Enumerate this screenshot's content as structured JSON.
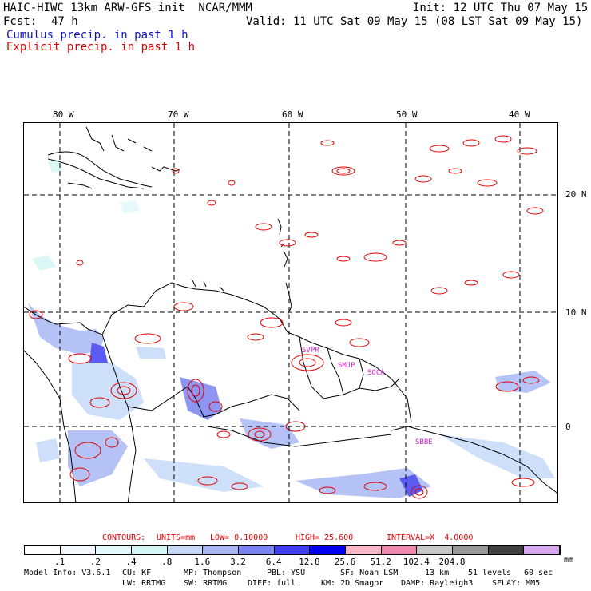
{
  "header": {
    "title": "HAIC-HIWC 13km ARW-GFS init  NCAR/MMM",
    "init": "Init: 12 UTC Thu 07 May 15",
    "fcst_label": "Fcst:",
    "fcst_value": "47 h",
    "valid": "Valid: 11 UTC Sat 09 May 15 (08 LST Sat 09 May 15)",
    "cumulus": "Cumulus precip. in past 1 h",
    "explicit": "Explicit precip. in past 1 h"
  },
  "colors": {
    "cumulus_text": "#1010c0",
    "explicit_text": "#e00000",
    "contour": "#e00000",
    "station": "#d020d0"
  },
  "map": {
    "lon_labels": [
      "80 W",
      "70 W",
      "60 W",
      "50 W",
      "40 W"
    ],
    "lat_labels": [
      "20 N",
      "10 N",
      "0"
    ],
    "stations": [
      "SVPR",
      "SMJP",
      "SOCA",
      "SBBE"
    ]
  },
  "contours_line": {
    "label": "CONTOURS:",
    "units": "UNITS=mm",
    "low": "LOW= 0.10000",
    "high": "HIGH= 25.600",
    "interval": "INTERVAL=X  4.0000"
  },
  "colorbar": {
    "labels": [
      ".1",
      ".2",
      ".4",
      ".8",
      "1.6",
      "3.2",
      "6.4",
      "12.8",
      "25.6",
      "51.2",
      "102.4",
      "204.8"
    ],
    "unit": "mm",
    "colors": [
      "#ffffff",
      "#f4f8ff",
      "#e2fafb",
      "#d4f6f4",
      "#c6daf8",
      "#a9b8f4",
      "#7a84f0",
      "#4040f0",
      "#0000f0",
      "#f8b8c8",
      "#f088b0",
      "#c8c8c8",
      "#989898",
      "#404040",
      "#d8a8f0"
    ]
  },
  "model_info": {
    "line1": [
      "Model Info: V3.6.1",
      "CU: KF",
      "MP: Thompson",
      "PBL: YSU",
      "SF: Noah LSM",
      "13 km",
      "51 levels",
      "60 sec"
    ],
    "line2": [
      "LW: RRTMG",
      "SW: RRTMG",
      "DIFF: full",
      "KM: 2D Smagor",
      "DAMP: Rayleigh3",
      "SFLAY: MM5"
    ]
  }
}
